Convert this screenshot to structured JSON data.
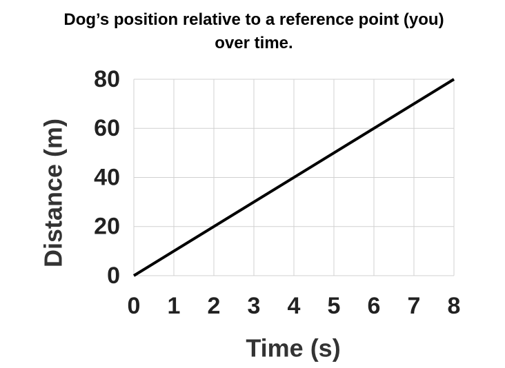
{
  "chart_data": {
    "type": "line",
    "title": "Dog’s position relative to a reference point (you) over time.",
    "x_label": "Time (s)",
    "y_label": "Distance (m)",
    "x": [
      0,
      8
    ],
    "series": [
      {
        "name": "Dog",
        "color": "#000000",
        "values": [
          0,
          80
        ]
      }
    ],
    "xlim": [
      0,
      8
    ],
    "xticks": [
      0,
      1,
      2,
      3,
      4,
      5,
      6,
      7,
      8
    ],
    "ylim": [
      0,
      80
    ],
    "yticks": [
      0,
      20,
      40,
      60,
      80
    ],
    "grid": true
  }
}
